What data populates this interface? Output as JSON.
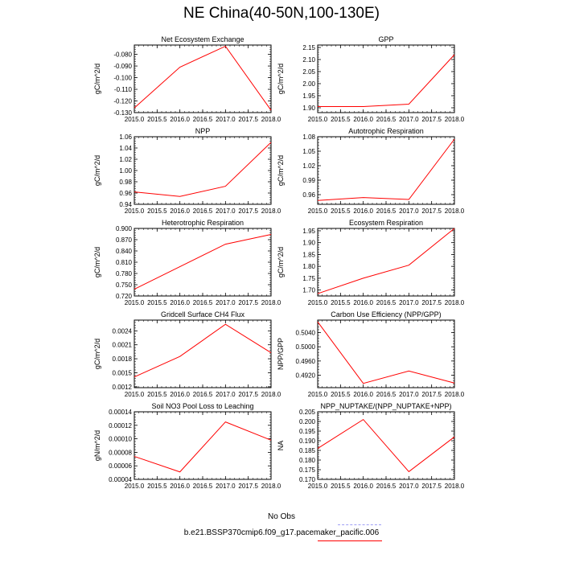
{
  "page": {
    "title": "NE China(40-50N,100-130E)"
  },
  "legend": {
    "obs_label": "No Obs",
    "obs_color": "#9f9ff5",
    "model_label": "b.e21.BSSP370cmip6.f09_g17.pacemaker_pacific.006",
    "model_color": "#ff0000"
  },
  "chart_data": [
    {
      "type": "line",
      "title": "Net Ecosystem Exchange",
      "ylabel": "gC/m^2/d",
      "x": [
        2015.0,
        2016.0,
        2017.0,
        2018.0
      ],
      "series": [
        {
          "values": [
            -0.126,
            -0.091,
            -0.073,
            -0.128
          ],
          "color": "#ff0000"
        }
      ],
      "xlim": [
        2015.0,
        2018.0
      ],
      "ylim": [
        -0.13,
        -0.072
      ],
      "xticks": [
        "2015.0",
        "2015.5",
        "2016.0",
        "2016.5",
        "2017.0",
        "2017.5",
        "2018.0"
      ],
      "yticks": [
        "-0.130",
        "-0.120",
        "-0.110",
        "-0.100",
        "-0.090",
        "-0.080"
      ]
    },
    {
      "type": "line",
      "title": "GPP",
      "ylabel": "gC/m^2/d",
      "x": [
        2015.0,
        2016.0,
        2017.0,
        2018.0
      ],
      "series": [
        {
          "values": [
            1.905,
            1.905,
            1.915,
            2.12
          ],
          "color": "#ff0000"
        }
      ],
      "xlim": [
        2015.0,
        2018.0
      ],
      "ylim": [
        1.88,
        2.16
      ],
      "xticks": [
        "2015.0",
        "2015.5",
        "2016.0",
        "2016.5",
        "2017.0",
        "2017.5",
        "2018.0"
      ],
      "yticks": [
        "1.90",
        "1.95",
        "2.00",
        "2.05",
        "2.10",
        "2.15"
      ]
    },
    {
      "type": "line",
      "title": "NPP",
      "ylabel": "gC/m^2/d",
      "x": [
        2015.0,
        2016.0,
        2017.0,
        2018.0
      ],
      "series": [
        {
          "values": [
            0.962,
            0.954,
            0.972,
            1.05
          ],
          "color": "#ff0000"
        }
      ],
      "xlim": [
        2015.0,
        2018.0
      ],
      "ylim": [
        0.94,
        1.06
      ],
      "xticks": [
        "2015.0",
        "2015.5",
        "2016.0",
        "2016.5",
        "2017.0",
        "2017.5",
        "2018.0"
      ],
      "yticks": [
        "0.94",
        "0.96",
        "0.98",
        "1.00",
        "1.02",
        "1.04",
        "1.06"
      ]
    },
    {
      "type": "line",
      "title": "Autotrophic Respiration",
      "ylabel": "gC/m^2/d",
      "x": [
        2015.0,
        2016.0,
        2017.0,
        2018.0
      ],
      "series": [
        {
          "values": [
            0.948,
            0.954,
            0.95,
            1.075
          ],
          "color": "#ff0000"
        }
      ],
      "xlim": [
        2015.0,
        2018.0
      ],
      "ylim": [
        0.94,
        1.08
      ],
      "xticks": [
        "2015.0",
        "2015.5",
        "2016.0",
        "2016.5",
        "2017.0",
        "2017.5",
        "2018.0"
      ],
      "yticks": [
        "0.96",
        "0.99",
        "1.02",
        "1.05",
        "1.08"
      ]
    },
    {
      "type": "line",
      "title": "Heterotrophic Respiration",
      "ylabel": "gC/m^2/d",
      "x": [
        2015.0,
        2016.0,
        2017.0,
        2018.0
      ],
      "series": [
        {
          "values": [
            0.738,
            0.798,
            0.858,
            0.884
          ],
          "color": "#ff0000"
        }
      ],
      "xlim": [
        2015.0,
        2018.0
      ],
      "ylim": [
        0.72,
        0.9
      ],
      "xticks": [
        "2015.0",
        "2015.5",
        "2016.0",
        "2016.5",
        "2017.0",
        "2017.5",
        "2018.0"
      ],
      "yticks": [
        "0.720",
        "0.750",
        "0.780",
        "0.810",
        "0.840",
        "0.870",
        "0.900"
      ]
    },
    {
      "type": "line",
      "title": "Ecosystem Respiration",
      "ylabel": "gC/m^2/d",
      "x": [
        2015.0,
        2016.0,
        2017.0,
        2018.0
      ],
      "series": [
        {
          "values": [
            1.685,
            1.75,
            1.805,
            1.96
          ],
          "color": "#ff0000"
        }
      ],
      "xlim": [
        2015.0,
        2018.0
      ],
      "ylim": [
        1.675,
        1.96
      ],
      "xticks": [
        "2015.0",
        "2015.5",
        "2016.0",
        "2016.5",
        "2017.0",
        "2017.5",
        "2018.0"
      ],
      "yticks": [
        "1.70",
        "1.75",
        "1.80",
        "1.85",
        "1.90",
        "1.95"
      ]
    },
    {
      "type": "line",
      "title": "Gridcell Surface CH4 Flux",
      "ylabel": "gC/m^2/d",
      "x": [
        2015.0,
        2016.0,
        2017.0,
        2018.0
      ],
      "series": [
        {
          "values": [
            0.00141,
            0.00185,
            0.00254,
            0.00193
          ],
          "color": "#ff0000"
        }
      ],
      "xlim": [
        2015.0,
        2018.0
      ],
      "ylim": [
        0.00118,
        0.00263
      ],
      "xticks": [
        "2015.0",
        "2015.5",
        "2016.0",
        "2016.5",
        "2017.0",
        "2017.5",
        "2018.0"
      ],
      "yticks": [
        "0.0012",
        "0.0015",
        "0.0018",
        "0.0021",
        "0.0024"
      ]
    },
    {
      "type": "line",
      "title": "Carbon Use Efficiency (NPP/GPP)",
      "ylabel": "NPP/GPP",
      "x": [
        2015.0,
        2016.0,
        2017.0,
        2018.0
      ],
      "series": [
        {
          "values": [
            0.507,
            0.4897,
            0.4932,
            0.4898
          ],
          "color": "#ff0000"
        }
      ],
      "xlim": [
        2015.0,
        2018.0
      ],
      "ylim": [
        0.4885,
        0.5075
      ],
      "xticks": [
        "2015.0",
        "2015.5",
        "2016.0",
        "2016.5",
        "2017.0",
        "2017.5",
        "2018.0"
      ],
      "yticks": [
        "0.4920",
        "0.4960",
        "0.5000",
        "0.5040"
      ]
    },
    {
      "type": "line",
      "title": "Soil NO3 Pool Loss to Leaching",
      "ylabel": "gN/m^2/d",
      "x": [
        2015.0,
        2016.0,
        2017.0,
        2018.0
      ],
      "series": [
        {
          "values": [
            7.4e-05,
            5.1e-05,
            0.000125,
            9.8e-05
          ],
          "color": "#ff0000"
        }
      ],
      "xlim": [
        2015.0,
        2018.0
      ],
      "ylim": [
        4e-05,
        0.00014
      ],
      "xticks": [
        "2015.0",
        "2015.5",
        "2016.0",
        "2016.5",
        "2017.0",
        "2017.5",
        "2018.0"
      ],
      "yticks": [
        "0.00004",
        "0.00006",
        "0.00008",
        "0.00010",
        "0.00012",
        "0.00014"
      ]
    },
    {
      "type": "line",
      "title": "NPP_NUPTAKE/(NPP_NUPTAKE+NPP)",
      "ylabel": "NA",
      "x": [
        2015.0,
        2016.0,
        2017.0,
        2018.0
      ],
      "series": [
        {
          "values": [
            0.186,
            0.201,
            0.174,
            0.192
          ],
          "color": "#ff0000"
        }
      ],
      "xlim": [
        2015.0,
        2018.0
      ],
      "ylim": [
        0.17,
        0.205
      ],
      "xticks": [
        "2015.0",
        "2015.5",
        "2016.0",
        "2016.5",
        "2017.0",
        "2017.5",
        "2018.0"
      ],
      "yticks": [
        "0.170",
        "0.175",
        "0.180",
        "0.185",
        "0.190",
        "0.195",
        "0.200",
        "0.205"
      ]
    }
  ]
}
